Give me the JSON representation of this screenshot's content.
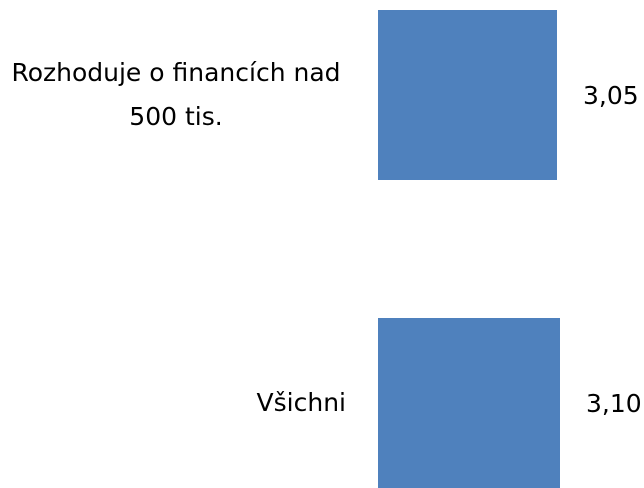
{
  "chart_data": {
    "type": "barh",
    "categories": [
      "Rozhoduje o financích nad 500 tis.",
      "Všichni"
    ],
    "values": [
      3.05,
      3.1
    ],
    "value_labels": [
      "3,05",
      "3,10"
    ],
    "color": "#4f81bd"
  }
}
